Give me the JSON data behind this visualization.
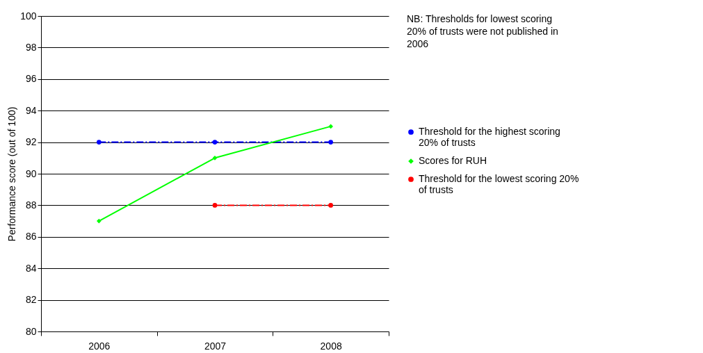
{
  "chart_data": {
    "type": "line",
    "ylabel": "Performance score (out of 100)",
    "categories": [
      "2006",
      "2007",
      "2008"
    ],
    "series": [
      {
        "name": "Threshold for the highest scoring 20% of trusts",
        "color": "#0000ff",
        "values": [
          92,
          92,
          92
        ],
        "marker": "circle",
        "line_style": "dashed"
      },
      {
        "name": "Scores for RUH",
        "color": "#00ff00",
        "values": [
          87,
          91,
          93
        ],
        "marker": "diamond",
        "line_style": "solid"
      },
      {
        "name": "Threshold for the lowest scoring 20% of trusts",
        "color": "#ff0000",
        "values": [
          null,
          88,
          88
        ],
        "marker": "circle",
        "line_style": "dashed"
      }
    ],
    "ylim": [
      80,
      100
    ],
    "yticks": [
      80,
      82,
      84,
      86,
      88,
      90,
      92,
      94,
      96,
      98,
      100
    ],
    "grid": "y",
    "legend": "right",
    "annotations": [
      "NB: Thresholds for lowest scoring 20% of trusts were not published in 2006"
    ]
  }
}
